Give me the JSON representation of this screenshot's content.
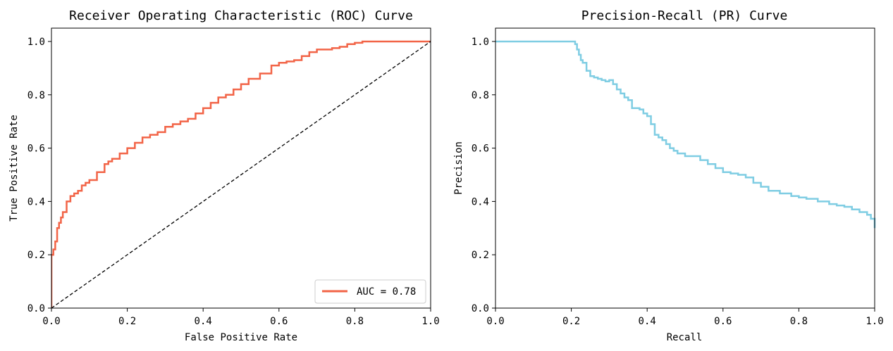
{
  "chart_data": [
    {
      "type": "line",
      "title": "Receiver Operating Characteristic (ROC) Curve",
      "xlabel": "False Positive Rate",
      "ylabel": "True Positive Rate",
      "xlim": [
        0.0,
        1.0
      ],
      "ylim": [
        0.0,
        1.05
      ],
      "xticks": [
        "0.0",
        "0.2",
        "0.4",
        "0.6",
        "0.8",
        "1.0"
      ],
      "yticks": [
        "0.0",
        "0.2",
        "0.4",
        "0.6",
        "0.8",
        "1.0"
      ],
      "grid": false,
      "legend": {
        "placement": "lower-right",
        "entries": [
          "AUC = 0.78"
        ]
      },
      "series": [
        {
          "name": "AUC = 0.78",
          "color": "#f26447",
          "style": "step",
          "x": [
            0.0,
            0.0,
            0.005,
            0.01,
            0.015,
            0.02,
            0.025,
            0.03,
            0.04,
            0.05,
            0.06,
            0.07,
            0.08,
            0.09,
            0.1,
            0.12,
            0.14,
            0.15,
            0.16,
            0.18,
            0.2,
            0.22,
            0.24,
            0.26,
            0.28,
            0.3,
            0.32,
            0.34,
            0.36,
            0.38,
            0.4,
            0.42,
            0.44,
            0.46,
            0.48,
            0.5,
            0.52,
            0.55,
            0.58,
            0.6,
            0.62,
            0.64,
            0.66,
            0.68,
            0.7,
            0.72,
            0.74,
            0.76,
            0.78,
            0.8,
            0.82,
            0.84,
            0.86,
            0.9,
            0.95,
            1.0
          ],
          "y": [
            0.0,
            0.2,
            0.22,
            0.25,
            0.3,
            0.32,
            0.34,
            0.36,
            0.4,
            0.42,
            0.43,
            0.44,
            0.46,
            0.47,
            0.48,
            0.51,
            0.54,
            0.55,
            0.56,
            0.58,
            0.6,
            0.62,
            0.64,
            0.65,
            0.66,
            0.68,
            0.69,
            0.7,
            0.71,
            0.73,
            0.75,
            0.77,
            0.79,
            0.8,
            0.82,
            0.84,
            0.86,
            0.88,
            0.91,
            0.92,
            0.925,
            0.93,
            0.945,
            0.96,
            0.97,
            0.97,
            0.975,
            0.98,
            0.99,
            0.995,
            1.0,
            1.0,
            1.0,
            1.0,
            1.0,
            1.0
          ]
        },
        {
          "color": "#000000",
          "style": "dashed",
          "x": [
            0.0,
            1.0
          ],
          "y": [
            0.0,
            1.0
          ]
        }
      ]
    },
    {
      "type": "line",
      "title": "Precision-Recall (PR) Curve",
      "xlabel": "Recall",
      "ylabel": "Precision",
      "xlim": [
        0.0,
        1.0
      ],
      "ylim": [
        0.0,
        1.05
      ],
      "xticks": [
        "0.0",
        "0.2",
        "0.4",
        "0.6",
        "0.8",
        "1.0"
      ],
      "yticks": [
        "0.0",
        "0.2",
        "0.4",
        "0.6",
        "0.8",
        "1.0"
      ],
      "grid": false,
      "series": [
        {
          "color": "#7fcde3",
          "style": "step",
          "x": [
            0.0,
            0.2,
            0.21,
            0.215,
            0.22,
            0.225,
            0.23,
            0.24,
            0.25,
            0.26,
            0.27,
            0.28,
            0.29,
            0.3,
            0.31,
            0.32,
            0.33,
            0.34,
            0.35,
            0.36,
            0.38,
            0.39,
            0.4,
            0.41,
            0.42,
            0.43,
            0.44,
            0.45,
            0.46,
            0.47,
            0.48,
            0.5,
            0.52,
            0.54,
            0.56,
            0.58,
            0.6,
            0.62,
            0.64,
            0.66,
            0.68,
            0.7,
            0.72,
            0.75,
            0.78,
            0.8,
            0.82,
            0.85,
            0.88,
            0.9,
            0.92,
            0.94,
            0.96,
            0.98,
            0.99,
            1.0
          ],
          "y": [
            1.0,
            1.0,
            0.99,
            0.97,
            0.95,
            0.93,
            0.92,
            0.89,
            0.87,
            0.865,
            0.86,
            0.855,
            0.85,
            0.855,
            0.84,
            0.82,
            0.805,
            0.79,
            0.78,
            0.75,
            0.745,
            0.73,
            0.72,
            0.69,
            0.65,
            0.64,
            0.63,
            0.615,
            0.6,
            0.59,
            0.58,
            0.57,
            0.57,
            0.555,
            0.54,
            0.525,
            0.51,
            0.505,
            0.5,
            0.49,
            0.47,
            0.455,
            0.44,
            0.43,
            0.42,
            0.415,
            0.41,
            0.4,
            0.39,
            0.385,
            0.38,
            0.37,
            0.36,
            0.35,
            0.335,
            0.3
          ]
        }
      ]
    }
  ]
}
